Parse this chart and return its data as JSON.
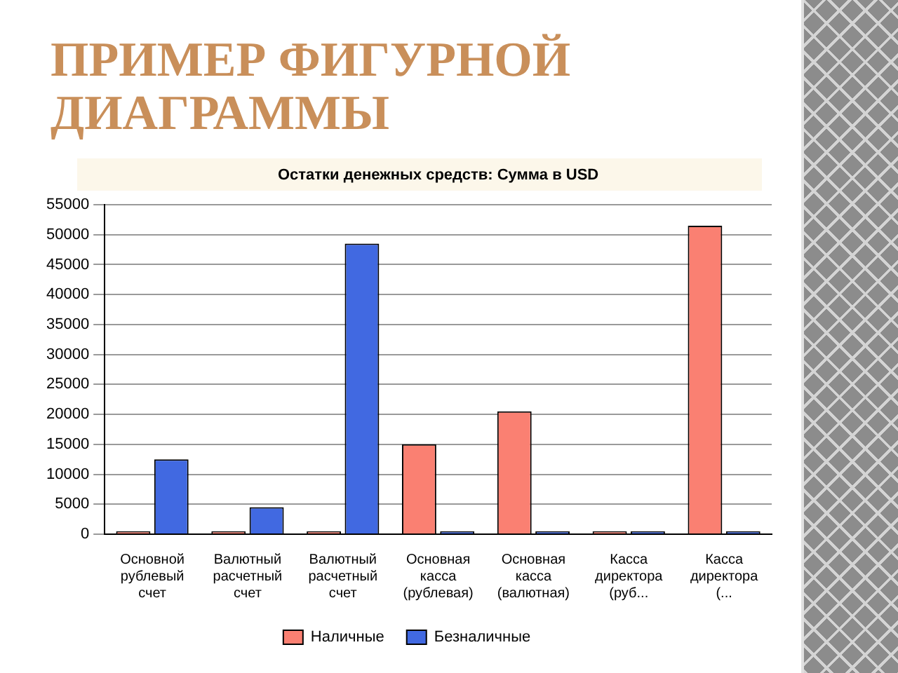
{
  "chart_data": {
    "type": "bar",
    "title": "ПРИМЕР ФИГУРНОЙ ДИАГРАММЫ",
    "subtitle": "Остатки денежных средств: Сумма в USD",
    "categories": [
      "Основной рублевый счет",
      "Валютный расчетный счет",
      "Валютный расчетный счет",
      "Основная касса (рублевая)",
      "Основная касса (валютная)",
      "Касса директора (руб...",
      "Касса директора (..."
    ],
    "series": [
      {
        "name": "Наличные",
        "color": "#fa8072",
        "values": [
          0,
          0,
          0,
          15000,
          20500,
          0,
          51500
        ]
      },
      {
        "name": "Безналичные",
        "color": "#4169e1",
        "values": [
          12500,
          4500,
          48500,
          0,
          0,
          0,
          0
        ]
      }
    ],
    "ylim": [
      0,
      55000
    ],
    "yticks": [
      0,
      5000,
      10000,
      15000,
      20000,
      25000,
      30000,
      35000,
      40000,
      45000,
      50000,
      55000
    ],
    "grid": "y",
    "legend": "bottom"
  }
}
